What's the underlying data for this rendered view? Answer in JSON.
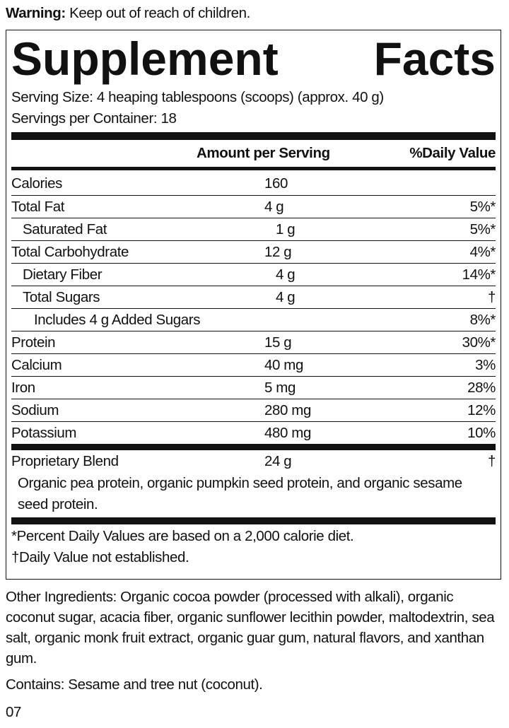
{
  "warning": {
    "label": "Warning:",
    "text": "Keep out of reach of children."
  },
  "panel": {
    "title": "Supplement Facts",
    "serving_size": "Serving Size: 4 heaping tablespoons (scoops) (approx. 40 g)",
    "servings_per_container": "Servings per Container: 18",
    "header": {
      "amount": "Amount per Serving",
      "daily_value": "%Daily Value"
    },
    "rows": [
      {
        "name": "Calories",
        "amount": "160",
        "indent": 0
      },
      {
        "name": "Total Fat",
        "amount": "4 g",
        "daily_value": "5%*",
        "indent": 0
      },
      {
        "name": "Saturated Fat",
        "amount": "1 g",
        "daily_value": "5%*",
        "indent": 1
      },
      {
        "name": "Total Carbohydrate",
        "amount": "12 g",
        "daily_value": "4%*",
        "indent": 0
      },
      {
        "name": "Dietary Fiber",
        "amount": "4 g",
        "daily_value": "14%*",
        "indent": 1
      },
      {
        "name": "Total Sugars",
        "amount": "4 g",
        "daily_value": "†",
        "indent": 1
      },
      {
        "name": "Includes 4 g Added Sugars",
        "daily_value": "8%*",
        "indent": 2
      },
      {
        "name": "Protein",
        "amount": "15 g",
        "daily_value": "30%*",
        "indent": 0
      },
      {
        "name": "Calcium",
        "amount": "40 mg",
        "daily_value": "3%",
        "indent": 0
      },
      {
        "name": "Iron",
        "amount": "5 mg",
        "daily_value": "28%",
        "indent": 0
      },
      {
        "name": "Sodium",
        "amount": "280 mg",
        "daily_value": "12%",
        "indent": 0
      },
      {
        "name": "Potassium",
        "amount": "480 mg",
        "daily_value": "10%",
        "indent": 0
      }
    ],
    "blend": {
      "name": "Proprietary Blend",
      "amount": "24 g",
      "daily_value": "†",
      "description": "Organic pea protein, organic pumpkin seed protein, and organic sesame seed protein."
    },
    "footnotes": [
      "*Percent Daily Values are based on a 2,000 calorie diet.",
      "†Daily Value not established."
    ]
  },
  "other_ingredients": "Other Ingredients: Organic cocoa powder (processed with alkali), organic coconut sugar, acacia fiber, organic sunflower lecithin powder, maltodextrin, sea salt, organic monk fruit extract, organic guar gum, natural flavors, and xanthan gum.",
  "contains": "Contains: Sesame and tree nut (coconut).",
  "code": "07"
}
